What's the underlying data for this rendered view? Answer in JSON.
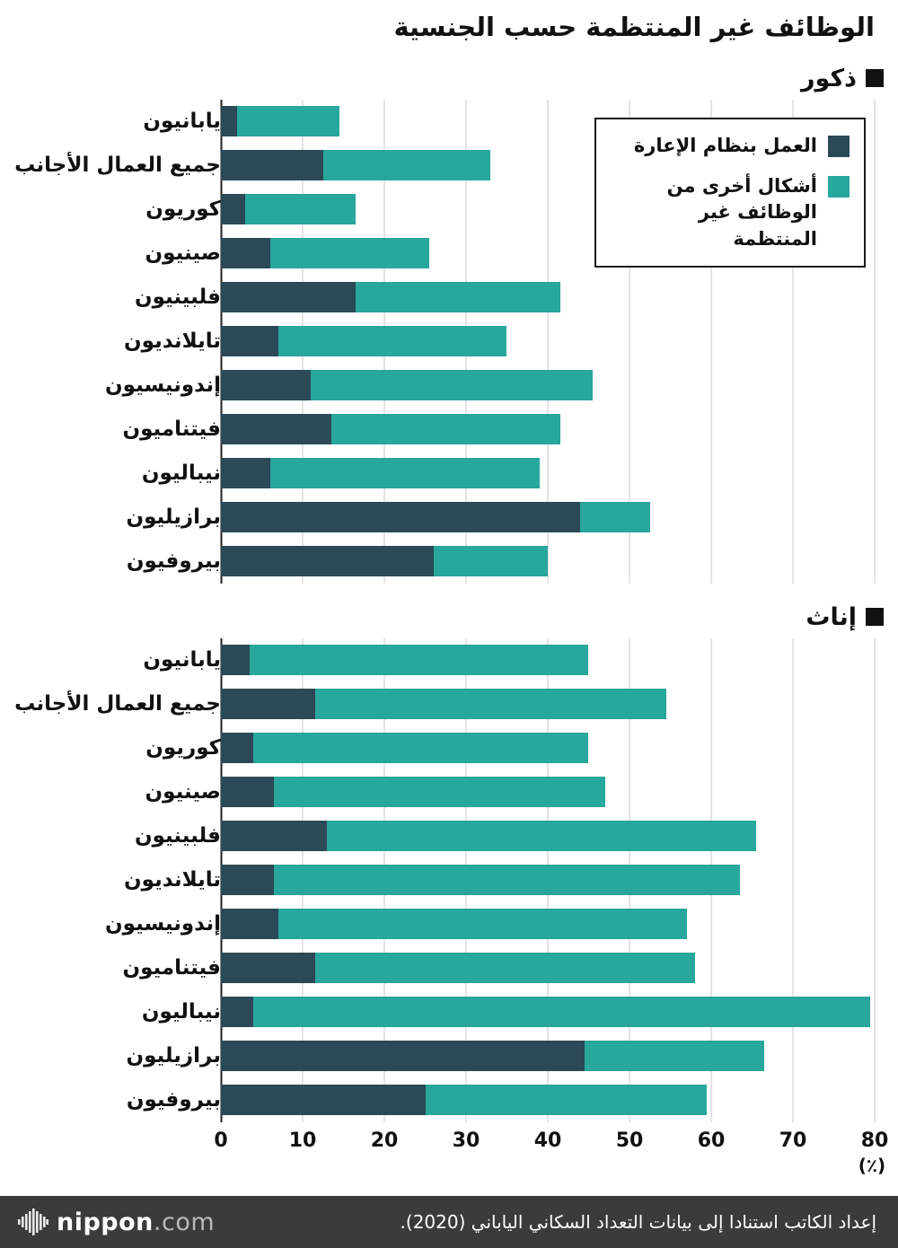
{
  "page": {
    "title": "الوظائف غير المنتظمة حسب الجنسية",
    "unit_label": "(٪)"
  },
  "legend": {
    "items": [
      {
        "key": "dispatch",
        "label": "العمل بنظام الإعارة",
        "color": "#2c4958"
      },
      {
        "key": "other",
        "label": "أشكال أخرى من الوظائف غير المنتظمة",
        "color": "#28a79c"
      }
    ]
  },
  "colors": {
    "dispatch": "#2c4958",
    "other": "#28a79c",
    "grid": "#c9c9c9",
    "axis": "#222222",
    "header_square": "#111111",
    "footer_bg": "#3b3b3b"
  },
  "chart_data": [
    {
      "type": "bar",
      "orientation": "horizontal",
      "stacked": true,
      "title": "ذكور",
      "xlim": [
        0,
        80
      ],
      "x_ticks": [
        0,
        10,
        20,
        30,
        40,
        50,
        60,
        70,
        80
      ],
      "categories": [
        "يابانيون",
        "جميع العمال الأجانب",
        "كوريون",
        "صينيون",
        "فلبينيون",
        "تايلانديون",
        "إندونيسيون",
        "فيتناميون",
        "نيباليون",
        "برازيليون",
        "بيروفيون"
      ],
      "series": [
        {
          "name": "العمل بنظام الإعارة",
          "color": "#2c4958",
          "values": [
            2,
            12.5,
            3,
            6,
            16.5,
            7,
            11,
            13.5,
            6,
            44,
            26
          ]
        },
        {
          "name": "أشكال أخرى من الوظائف غير المنتظمة",
          "color": "#28a79c",
          "values": [
            12.5,
            20.5,
            13.5,
            19.5,
            25,
            28,
            34.5,
            28,
            33,
            8.5,
            14
          ]
        }
      ]
    },
    {
      "type": "bar",
      "orientation": "horizontal",
      "stacked": true,
      "title": "إناث",
      "xlim": [
        0,
        80
      ],
      "x_ticks": [
        0,
        10,
        20,
        30,
        40,
        50,
        60,
        70,
        80
      ],
      "categories": [
        "يابانيون",
        "جميع العمال الأجانب",
        "كوريون",
        "صينيون",
        "فلبينيون",
        "تايلانديون",
        "إندونيسيون",
        "فيتناميون",
        "نيباليون",
        "برازيليون",
        "بيروفيون"
      ],
      "series": [
        {
          "name": "العمل بنظام الإعارة",
          "color": "#2c4958",
          "values": [
            3.5,
            11.5,
            4,
            6.5,
            13,
            6.5,
            7,
            11.5,
            4,
            44.5,
            25
          ]
        },
        {
          "name": "أشكال أخرى من الوظائف غير المنتظمة",
          "color": "#28a79c",
          "values": [
            41.5,
            43,
            41,
            40.5,
            52.5,
            57,
            50,
            46.5,
            75.5,
            22,
            34.5
          ]
        }
      ]
    }
  ],
  "footer": {
    "brand": "nippon",
    "brand_suffix": ".com",
    "credit": "إعداد الكاتب استنادا إلى بيانات التعداد السكاني الياباني (2020)."
  }
}
